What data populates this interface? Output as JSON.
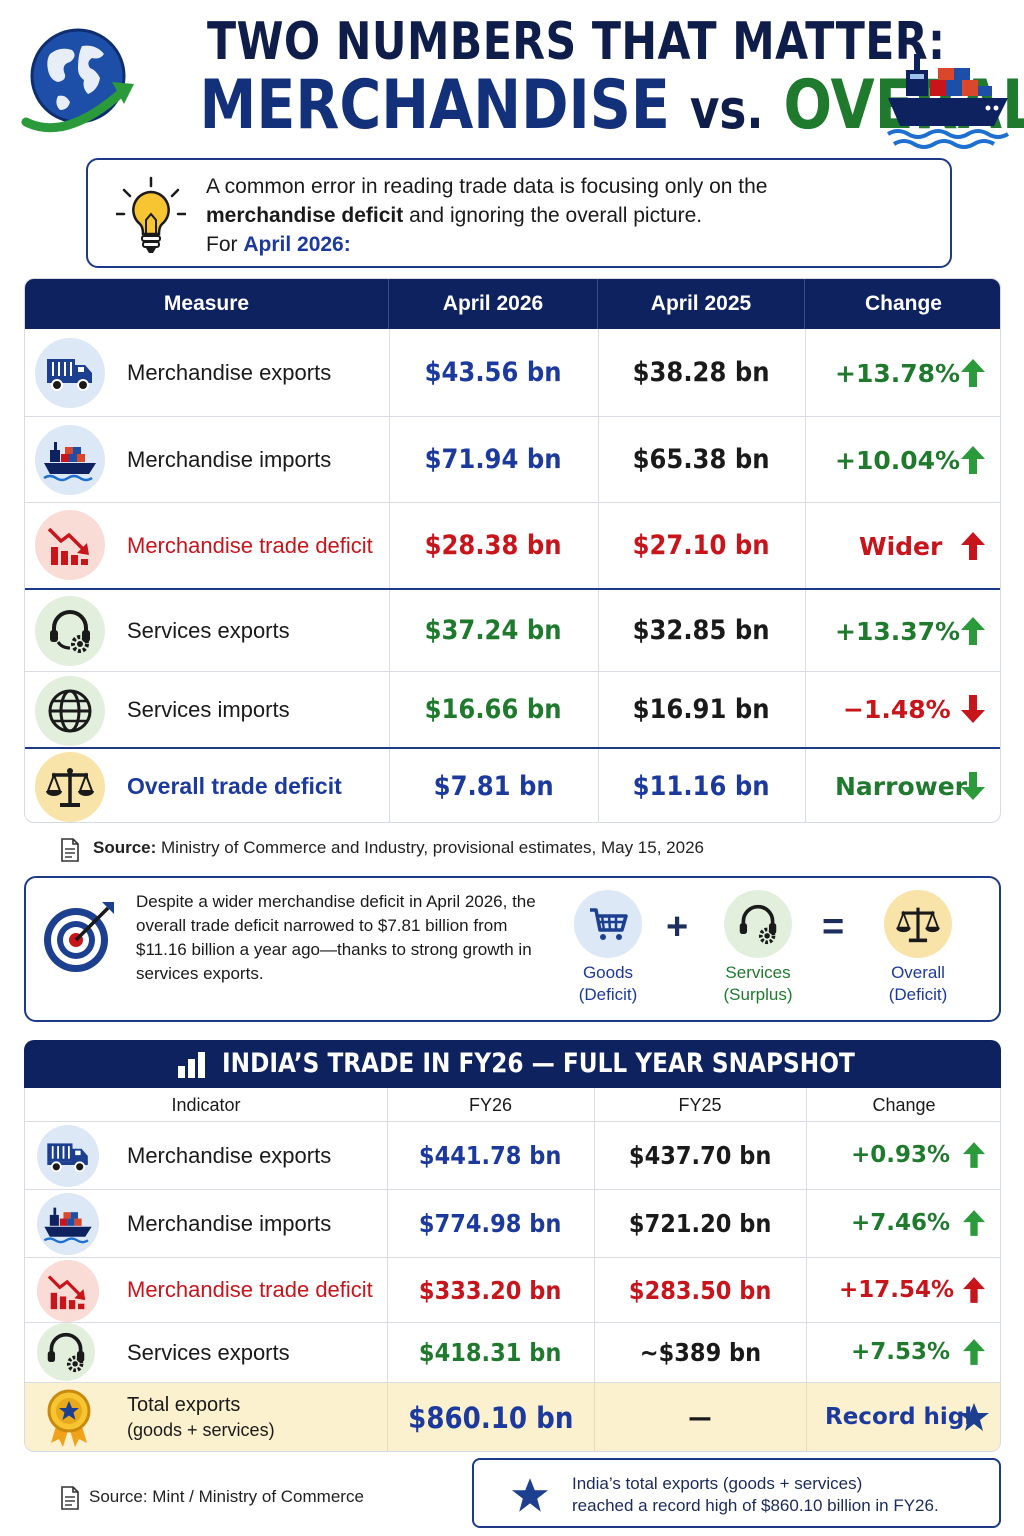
{
  "header": {
    "title_line1": "TWO NUMBERS THAT MATTER:",
    "title_merch": "MERCHANDISE",
    "title_vs": "vs.",
    "title_overall": "OVERALL"
  },
  "intro": {
    "line1": "A common error in reading trade data is focusing only on the",
    "line2_bold": "merchandise deficit",
    "line2_rest": " and ignoring the overall picture.",
    "line3_prefix": "For ",
    "line3_highlight": "April 2026:"
  },
  "table1": {
    "headers": [
      "Measure",
      "April 2026",
      "April 2025",
      "Change"
    ],
    "rows": [
      {
        "icon": "truck-icon",
        "label": "Merchandise exports",
        "v1": "$43.56 bn",
        "v2": "$38.28 bn",
        "change": "+13.78%",
        "dir": "up"
      },
      {
        "icon": "cargo-ship-icon",
        "label": "Merchandise imports",
        "v1": "$71.94 bn",
        "v2": "$65.38 bn",
        "change": "+10.04%",
        "dir": "up"
      },
      {
        "icon": "declining-chart-icon",
        "label": "Merchandise trade deficit",
        "v1": "$28.38 bn",
        "v2": "$27.10 bn",
        "change": "Wider",
        "dir": "up"
      },
      {
        "icon": "headset-gear-icon",
        "label": "Services exports",
        "v1": "$37.24 bn",
        "v2": "$32.85 bn",
        "change": "+13.37%",
        "dir": "up"
      },
      {
        "icon": "globe-icon",
        "label": "Services imports",
        "v1": "$16.66 bn",
        "v2": "$16.91 bn",
        "change": "−1.48%",
        "dir": "down"
      },
      {
        "icon": "balance-scale-icon",
        "label": "Overall trade deficit",
        "v1": "$7.81 bn",
        "v2": "$11.16 bn",
        "change": "Narrower",
        "dir": "down"
      }
    ]
  },
  "source1": {
    "label": "Source:",
    "text": " Ministry of Commerce and Industry, provisional estimates, May 15, 2026"
  },
  "summary": {
    "text": "Despite a wider merchandise deficit in April 2026, the overall trade deficit narrowed to $7.81 billion from $11.16 billion a year ago—thanks to strong growth in services exports.",
    "goods_line1": "Goods",
    "goods_line2": "(Deficit)",
    "plus": "+",
    "services_line1": "Services",
    "services_line2": "(Surplus)",
    "equals": "=",
    "overall_line1": "Overall",
    "overall_line2": "(Deficit)"
  },
  "table2": {
    "title": "INDIA’S TRADE IN FY26 — FULL YEAR SNAPSHOT",
    "headers": [
      "Indicator",
      "FY26",
      "FY25",
      "Change"
    ],
    "rows": [
      {
        "icon": "truck-icon",
        "label": "Merchandise exports",
        "v1": "$441.78 bn",
        "v2": "$437.70 bn",
        "change": "+0.93%"
      },
      {
        "icon": "cargo-ship-icon",
        "label": "Merchandise imports",
        "v1": "$774.98 bn",
        "v2": "$721.20 bn",
        "change": "+7.46%"
      },
      {
        "icon": "declining-chart-icon",
        "label": "Merchandise trade deficit",
        "v1": "$333.20 bn",
        "v2": "$283.50 bn",
        "change": "+17.54%"
      },
      {
        "icon": "headset-gear-icon",
        "label": "Services exports",
        "v1": "$418.31 bn",
        "v2": "~$389 bn",
        "change": "+7.53%"
      }
    ],
    "total": {
      "icon": "medal-icon",
      "label_line1": "Total exports",
      "label_line2": "(goods + services)",
      "v1": "$860.10 bn",
      "v2": "—",
      "change": "Record high"
    }
  },
  "source2": "Source: Mint / Ministry of Commerce",
  "note": {
    "line1": "India’s total exports (goods + services)",
    "line2": "reached a record high of $860.10 billion in FY26."
  },
  "colors": {
    "navy": "#0f2260",
    "blue": "#1c3a9e",
    "green": "#1f7a2e",
    "red": "#c8141b",
    "highlight_row": "#fbf1cf"
  }
}
